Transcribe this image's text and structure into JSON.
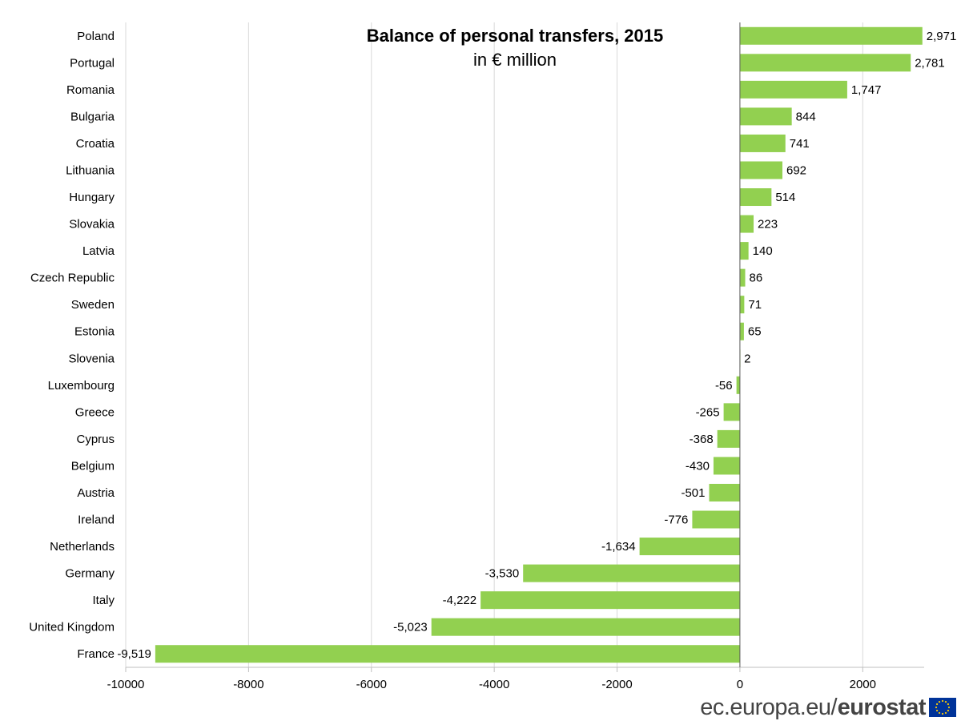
{
  "chart_data": {
    "type": "bar",
    "orientation": "horizontal",
    "title": "Balance of personal transfers, 2015",
    "subtitle": "in € million",
    "categories": [
      "Poland",
      "Portugal",
      "Romania",
      "Bulgaria",
      "Croatia",
      "Lithuania",
      "Hungary",
      "Slovakia",
      "Latvia",
      "Czech Republic",
      "Sweden",
      "Estonia",
      "Slovenia",
      "Luxembourg",
      "Greece",
      "Cyprus",
      "Belgium",
      "Austria",
      "Ireland",
      "Netherlands",
      "Germany",
      "Italy",
      "United Kingdom",
      "France"
    ],
    "values": [
      2971,
      2781,
      1747,
      844,
      741,
      692,
      514,
      223,
      140,
      86,
      71,
      65,
      2,
      -56,
      -265,
      -368,
      -430,
      -501,
      -776,
      -1634,
      -3530,
      -4222,
      -5023,
      -9519
    ],
    "value_labels": [
      "2,971",
      "2,781",
      "1,747",
      "844",
      "741",
      "692",
      "514",
      "223",
      "140",
      "86",
      "71",
      "65",
      "2",
      "-56",
      "-265",
      "-368",
      "-430",
      "-501",
      "-776",
      "-1,634",
      "-3,530",
      "-4,222",
      "-5,023",
      "-9,519"
    ],
    "xlim": [
      -10000,
      3000
    ],
    "x_ticks": [
      -10000,
      -8000,
      -6000,
      -4000,
      -2000,
      0,
      2000
    ],
    "x_tick_labels": [
      "-10000",
      "-8000",
      "-6000",
      "-4000",
      "-2000",
      "0",
      "2000"
    ],
    "xlabel": "",
    "ylabel": "",
    "grid": true,
    "legend": "none",
    "bar_color": "#92d050"
  },
  "footer": {
    "site": "ec.europa.eu",
    "brand": "eurostat"
  }
}
